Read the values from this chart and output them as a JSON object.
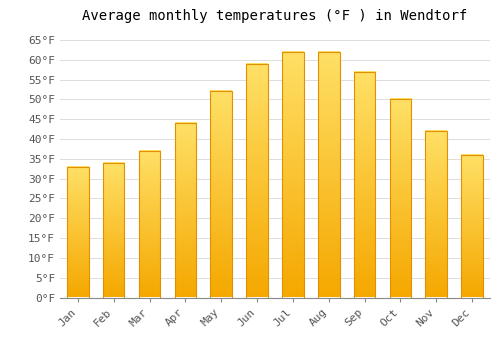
{
  "title": "Average monthly temperatures (°F ) in Wendtorf",
  "months": [
    "Jan",
    "Feb",
    "Mar",
    "Apr",
    "May",
    "Jun",
    "Jul",
    "Aug",
    "Sep",
    "Oct",
    "Nov",
    "Dec"
  ],
  "values": [
    33,
    34,
    37,
    44,
    52,
    59,
    62,
    62,
    57,
    50,
    42,
    36
  ],
  "bar_color_top": "#FFD966",
  "bar_color_bottom": "#F5A800",
  "bar_edge_color": "#E09000",
  "background_color": "#FFFFFF",
  "grid_color": "#DDDDDD",
  "ylim": [
    0,
    68
  ],
  "yticks": [
    0,
    5,
    10,
    15,
    20,
    25,
    30,
    35,
    40,
    45,
    50,
    55,
    60,
    65
  ],
  "ytick_labels": [
    "0°F",
    "5°F",
    "10°F",
    "15°F",
    "20°F",
    "25°F",
    "30°F",
    "35°F",
    "40°F",
    "45°F",
    "50°F",
    "55°F",
    "60°F",
    "65°F"
  ],
  "title_fontsize": 10,
  "tick_fontsize": 8,
  "font_family": "monospace",
  "bar_width": 0.6
}
